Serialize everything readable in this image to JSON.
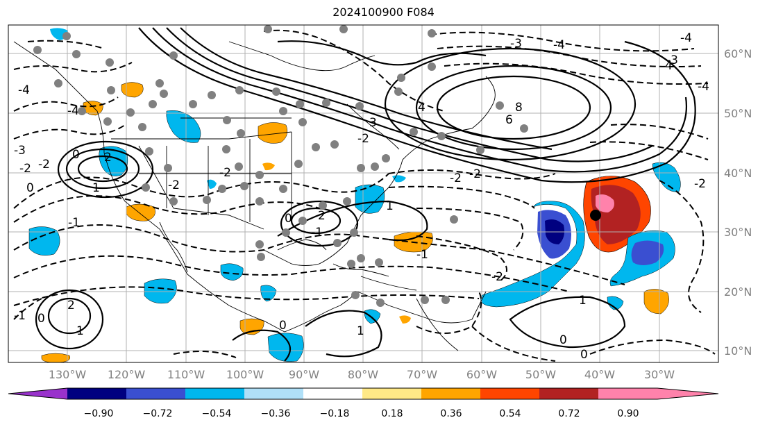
{
  "title": "2024100900 F084",
  "map": {
    "projection": "PlateCarree",
    "lon_range": [
      -140,
      -20
    ],
    "lat_range": [
      8,
      65
    ],
    "grid": true,
    "lon_ticks": [
      "130°W",
      "120°W",
      "110°W",
      "100°W",
      "90°W",
      "80°W",
      "70°W",
      "60°W",
      "50°W",
      "40°W",
      "30°W"
    ],
    "lat_ticks": [
      "60°N",
      "50°N",
      "40°N",
      "30°N",
      "20°N",
      "10°N"
    ],
    "marker_color": "#808080",
    "storm_marker_color": "#000000"
  },
  "colorbar": {
    "colors": [
      "#9932cc",
      "#000080",
      "#3a4fd1",
      "#00b7ee",
      "#b0e0f8",
      "#ffffff",
      "#ffe987",
      "#ffa500",
      "#ff4500",
      "#b22222",
      "#ff82ab"
    ],
    "labels": [
      "−0.90",
      "−0.72",
      "−0.54",
      "−0.36",
      "−0.18",
      "0.18",
      "0.36",
      "0.54",
      "0.72",
      "0.90"
    ]
  },
  "contour_labels": [
    "-2",
    "-2",
    "-4",
    "0",
    "-2",
    "-2",
    "2",
    "1",
    "0",
    "-1",
    "2",
    "1",
    "0",
    "2",
    "3",
    "4",
    "6",
    "8",
    "-3",
    "-4",
    "4",
    "-2",
    "-2",
    "1",
    "0",
    "0",
    "1",
    "0",
    "-1",
    "1",
    "-1",
    "0",
    "-1",
    "-3",
    "-2",
    "-2",
    "-4",
    "-2",
    "-3",
    "-4",
    "-4"
  ]
}
